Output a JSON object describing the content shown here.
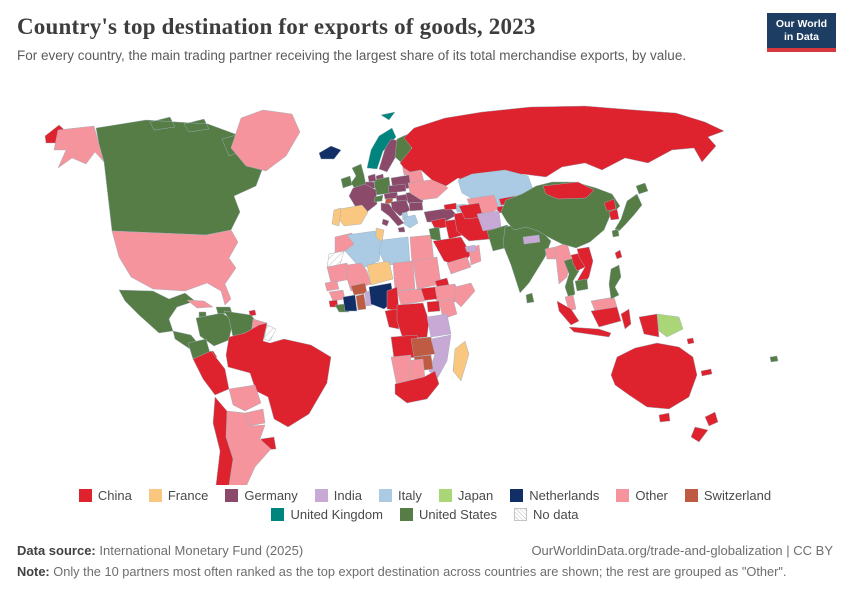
{
  "header": {
    "title": "Country's top destination for exports of goods, 2023",
    "subtitle": "For every country, the main trading partner receiving the largest share of its total merchandise exports, by value.",
    "logo": {
      "line1": "Our World",
      "line2": "in Data",
      "bg_color": "#1d3d63",
      "accent_color": "#d7383d"
    }
  },
  "legend": {
    "items": [
      {
        "label": "China",
        "color": "#de232e"
      },
      {
        "label": "France",
        "color": "#f9c77f"
      },
      {
        "label": "Germany",
        "color": "#8b4a69"
      },
      {
        "label": "India",
        "color": "#c8a9d6"
      },
      {
        "label": "Italy",
        "color": "#abcae4"
      },
      {
        "label": "Japan",
        "color": "#aad678"
      },
      {
        "label": "Netherlands",
        "color": "#112e66"
      },
      {
        "label": "Other",
        "color": "#f5949c"
      },
      {
        "label": "Switzerland",
        "color": "#bf5b43"
      },
      {
        "label": "United Kingdom",
        "color": "#00847e"
      },
      {
        "label": "United States",
        "color": "#567d46"
      },
      {
        "label": "No data",
        "color": "#ffffff",
        "hatched": true
      }
    ]
  },
  "map": {
    "countries": {
      "russia-chukotka": "China",
      "alaska": "Other",
      "canada": "United States",
      "greenland": "Other",
      "iceland": "Netherlands",
      "usa": "Other",
      "mexico": "United States",
      "central-america": "United States",
      "panama": "China",
      "cuba": "Other",
      "jamaica": "United States",
      "hispaniola": "United States",
      "trinidad": "China",
      "colombia": "United States",
      "venezuela": "United States",
      "guyana-suriname": "Other",
      "french-guiana": "No data",
      "ecuador": "United States",
      "peru": "China",
      "brazil": "China",
      "bolivia": "Other",
      "paraguay": "Other",
      "uruguay": "China",
      "argentina": "Other",
      "chile": "China",
      "ireland": "United States",
      "united-kingdom": "United States",
      "norway": "United Kingdom",
      "svalbard": "United Kingdom",
      "sweden": "Germany",
      "finland": "United States",
      "denmark": "Germany",
      "baltics": "Other",
      "belarus": "Other",
      "poland": "Germany",
      "germany": "United States",
      "netherlands": "Germany",
      "belgium": "Germany",
      "france": "Germany",
      "spain": "France",
      "portugal": "France",
      "switzerland": "United States",
      "slovenia": "Switzerland",
      "italy": "Germany",
      "austria": "Germany",
      "czechia-slovakia": "Germany",
      "hungary": "Germany",
      "balkans": "Germany",
      "albania": "Italy",
      "greece": "Italy",
      "romania": "Germany",
      "bulgaria": "Germany",
      "ukraine": "Other",
      "russia": "China",
      "turkey": "Germany",
      "georgia": "China",
      "azerbaijan": "Italy",
      "morocco": "Other",
      "western-sahara": "No data",
      "algeria": "Italy",
      "tunisia": "France",
      "libya": "Italy",
      "egypt": "Other",
      "mauritania": "Other",
      "mali": "Other",
      "senegal": "Other",
      "guinea": "Other",
      "sierra-leone": "China",
      "liberia": "United States",
      "ivory-coast": "Netherlands",
      "burkina-faso": "Switzerland",
      "ghana": "Switzerland",
      "togo-benin": "India",
      "niger": "France",
      "nigeria": "Netherlands",
      "chad": "Other",
      "sudan": "Other",
      "eritrea": "China",
      "ethiopia": "Other",
      "somalia": "Other",
      "south-sudan": "China",
      "uganda": "China",
      "kenya": "Other",
      "dr-congo": "China",
      "gabon-congo": "China",
      "cameroon": "China",
      "central-african-republic": "Other",
      "tanzania": "India",
      "angola": "China",
      "zambia": "Switzerland",
      "malawi": "Other",
      "mozambique": "India",
      "zimbabwe": "Switzerland",
      "botswana": "Other",
      "namibia": "Other",
      "south-africa": "China",
      "madagascar": "France",
      "syria": "China",
      "israel-jordan": "United States",
      "iraq": "China",
      "saudi-arabia": "China",
      "yemen": "Other",
      "oman": "Other",
      "uae": "India",
      "iran": "China",
      "kazakhstan": "Italy",
      "uzbekistan": "Other",
      "turkmenistan": "China",
      "kyrgyzstan": "China",
      "tajikistan": "China",
      "afghanistan": "India",
      "pakistan": "United States",
      "india": "United States",
      "nepal": "India",
      "bangladesh": "Other",
      "sri-lanka": "United States",
      "myanmar": "Other",
      "thailand": "United States",
      "laos": "China",
      "vietnam": "China",
      "cambodia": "United States",
      "malaysia": "Other",
      "indonesia": "China",
      "papua-new-guinea": "Japan",
      "philippines": "United States",
      "china": "United States",
      "mongolia": "China",
      "north-korea": "China",
      "south-korea": "China",
      "japan": "United States",
      "taiwan": "China",
      "australia": "China",
      "new-zealand": "China",
      "fiji": "United States",
      "new-caledonia": "China",
      "solomon-islands": "China"
    }
  },
  "footer": {
    "source_label": "Data source:",
    "source": "International Monetary Fund (2025)",
    "link": "OurWorldinData.org/trade-and-globalization | CC BY",
    "note_label": "Note:",
    "note": "Only the 10 partners most often ranked as the top export destination across countries are shown; the rest are grouped as \"Other\"."
  }
}
